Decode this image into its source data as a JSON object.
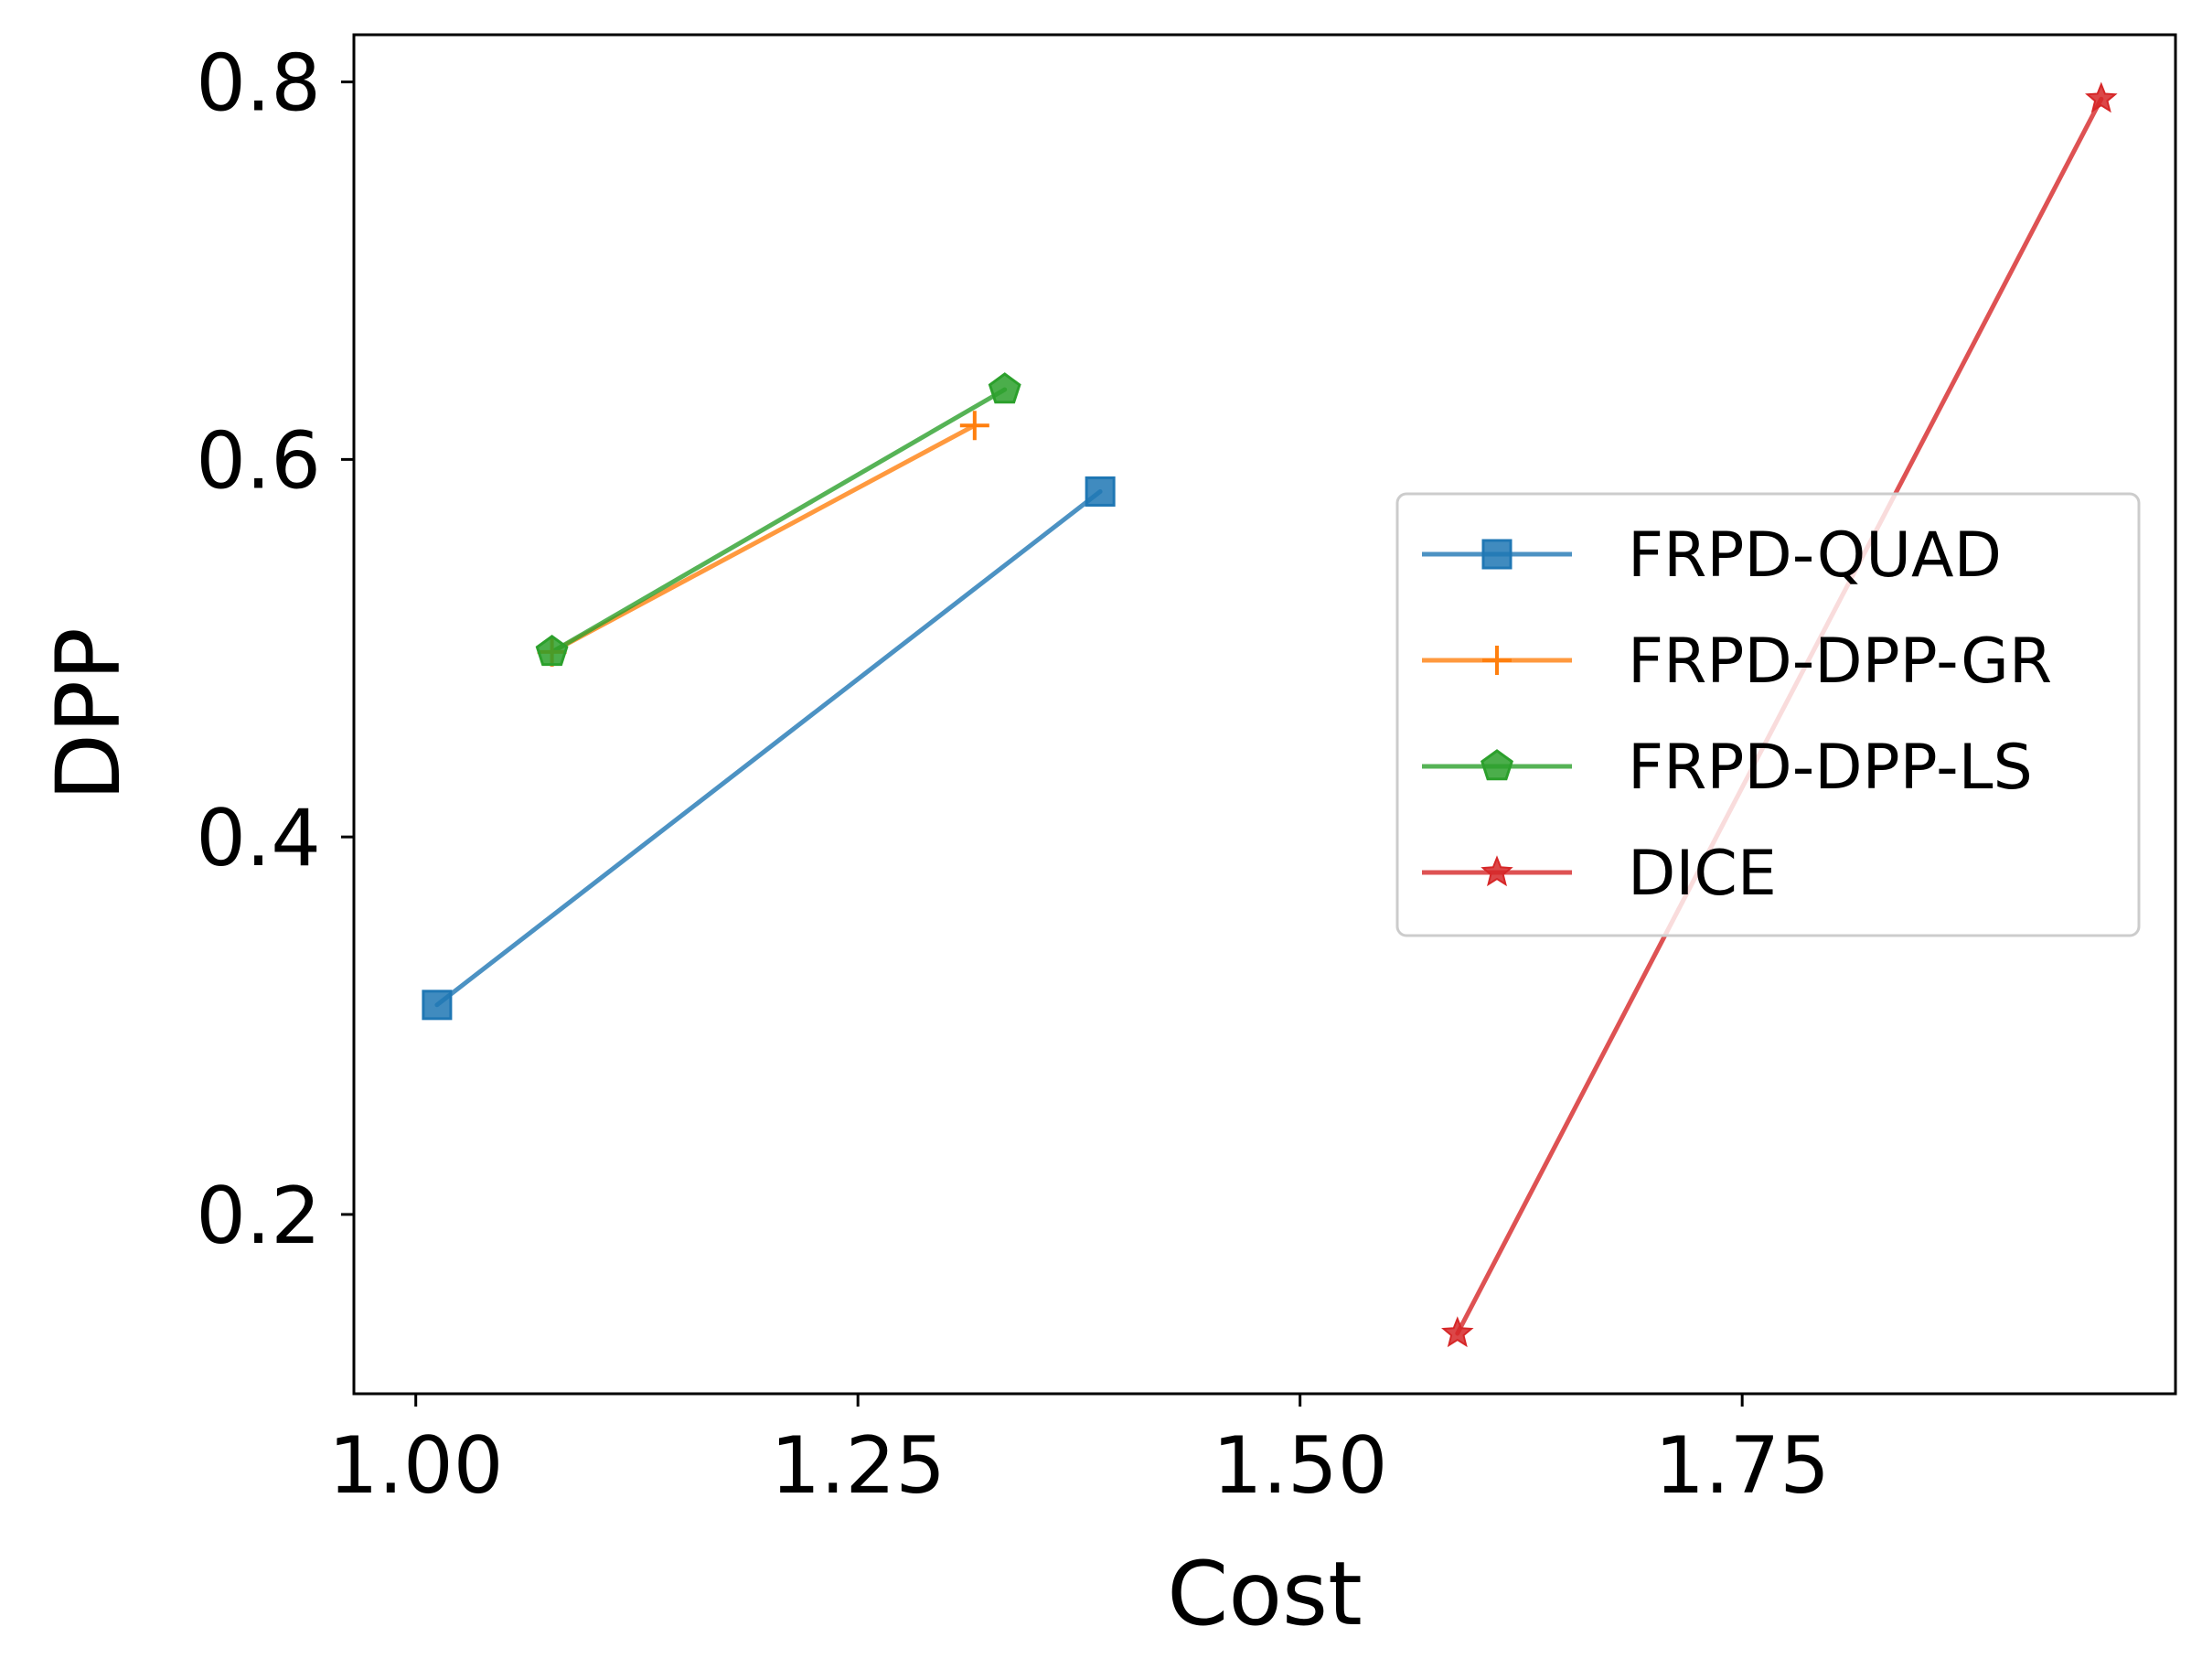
{
  "chart_data": {
    "type": "line",
    "title": "",
    "xlabel": "Cost",
    "ylabel": "DPP",
    "xlim": [
      0.965,
      1.995
    ],
    "ylim": [
      0.105,
      0.825
    ],
    "xticks": [
      1.0,
      1.25,
      1.5,
      1.75
    ],
    "xtick_labels": [
      "1.00",
      "1.25",
      "1.50",
      "1.75"
    ],
    "yticks": [
      0.2,
      0.4,
      0.6,
      0.8
    ],
    "ytick_labels": [
      "0.2",
      "0.4",
      "0.6",
      "0.8"
    ],
    "grid": false,
    "legend_position": "center-right",
    "series": [
      {
        "name": "FRPD-QUAD",
        "color": "#1f77b4",
        "marker": "square",
        "points": [
          [
            1.012,
            0.311
          ],
          [
            1.387,
            0.583
          ]
        ]
      },
      {
        "name": "FRPD-DPP-GR",
        "color": "#ff7f0e",
        "marker": "plus",
        "points": [
          [
            1.077,
            0.498
          ],
          [
            1.316,
            0.618
          ]
        ]
      },
      {
        "name": "FRPD-DPP-LS",
        "color": "#2ca02c",
        "marker": "pentagon",
        "points": [
          [
            1.077,
            0.498
          ],
          [
            1.333,
            0.637
          ]
        ]
      },
      {
        "name": "DICE",
        "color": "#d62728",
        "marker": "star",
        "points": [
          [
            1.589,
            0.137
          ],
          [
            1.953,
            0.791
          ]
        ]
      }
    ]
  }
}
